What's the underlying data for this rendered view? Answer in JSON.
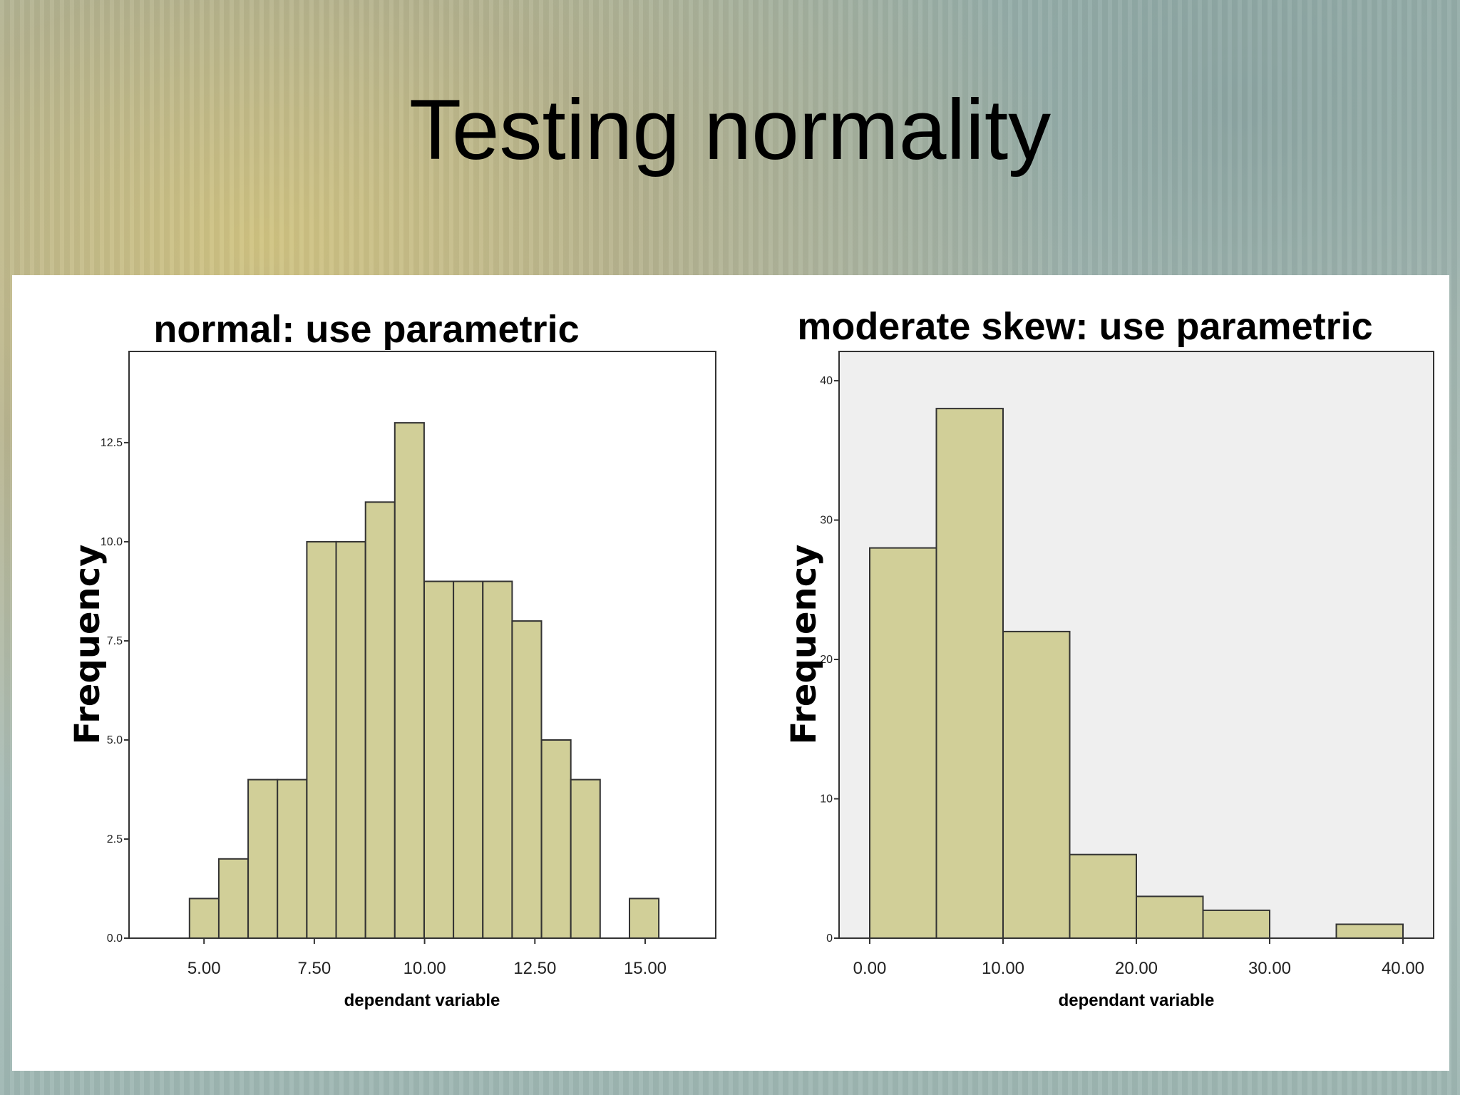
{
  "slide": {
    "title": "Testing normality"
  },
  "colors": {
    "bar_fill": "#d1cf98",
    "bar_stroke": "#333333",
    "plot_bg_right": "#efefef"
  },
  "chart_data": [
    {
      "type": "bar",
      "title": "normal: use parametric",
      "xlabel": "dependant variable",
      "ylabel": "Frequency",
      "bin_width": 0.665,
      "bin_starts": [
        4.67,
        5.335,
        6.0,
        6.665,
        7.33,
        7.995,
        8.66,
        9.325,
        9.99,
        10.655,
        11.32,
        11.985,
        12.65,
        13.315,
        14.645
      ],
      "values": [
        1,
        2,
        4,
        4,
        10,
        10,
        11,
        13,
        9,
        9,
        9,
        8,
        5,
        4,
        1
      ],
      "xlim": [
        3.3,
        16.6
      ],
      "ylim": [
        0,
        14.8
      ],
      "xticks": [
        5,
        7.5,
        10,
        12.5,
        15
      ],
      "xtick_labels": [
        "5.00",
        "7.50",
        "10.00",
        "12.50",
        "15.00"
      ],
      "yticks": [
        0,
        2.5,
        5,
        7.5,
        10,
        12.5
      ],
      "ytick_labels": [
        "0.0",
        "2.5",
        "5.0",
        "7.5",
        "10.0",
        "12.5"
      ],
      "grid": false
    },
    {
      "type": "bar",
      "title": "moderate skew: use parametric",
      "xlabel": "dependant variable",
      "ylabel": "Frequency",
      "bin_width": 5,
      "bin_starts": [
        0,
        5,
        10,
        15,
        20,
        25,
        35
      ],
      "values": [
        28,
        38,
        22,
        6,
        3,
        2,
        1
      ],
      "xlim": [
        -2.3,
        42.3
      ],
      "ylim": [
        0,
        42.1
      ],
      "xticks": [
        0,
        10,
        20,
        30,
        40
      ],
      "xtick_labels": [
        "0.00",
        "10.00",
        "20.00",
        "30.00",
        "40.00"
      ],
      "yticks": [
        0,
        10,
        20,
        30,
        40
      ],
      "ytick_labels": [
        "0",
        "10",
        "20",
        "30",
        "40"
      ],
      "grid": false
    }
  ]
}
